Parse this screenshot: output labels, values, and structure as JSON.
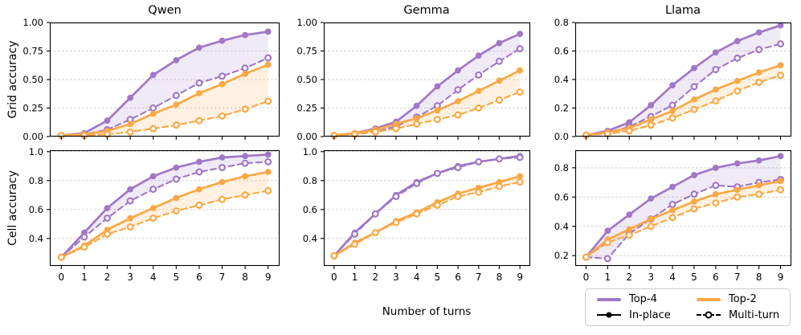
{
  "chart_data": {
    "type": "line",
    "xlabel": "Number of turns",
    "x": [
      0,
      1,
      2,
      3,
      4,
      5,
      6,
      7,
      8,
      9
    ],
    "x_tick_labels": [
      "0",
      "1",
      "2",
      "3",
      "4",
      "5",
      "6",
      "7",
      "8",
      "9"
    ],
    "row_labels": [
      "Grid accuracy",
      "Cell accuracy"
    ],
    "col_titles": [
      "Qwen",
      "Gemma",
      "Llama"
    ],
    "legend": {
      "position": "bottom-right",
      "top4_label": "Top-4",
      "top2_label": "Top-2",
      "inplace_label": "In-place",
      "multiturn_label": "Multi-turn"
    },
    "colors": {
      "top4": "#9f78c6",
      "top2": "#faa845",
      "top4_fill": "rgba(159,120,198,0.16)",
      "top2_fill": "rgba(250,168,69,0.16)",
      "gridline": "#cfcfcf",
      "spine": "#000000"
    },
    "grid": true,
    "subplots": [
      {
        "title": "Qwen",
        "ylabel": "Grid accuracy",
        "ylim": [
          0,
          1.0
        ],
        "yticks": [
          0,
          0.25,
          0.5,
          0.75,
          1.0
        ],
        "ytick_labels": [
          "0.00",
          "0.25",
          "0.50",
          "0.75",
          "1.00"
        ],
        "show_x_tick_labels": false,
        "series": [
          {
            "name": "Top-4 In-place",
            "group": "top4",
            "style": "solid",
            "marker": "filled-circle",
            "values": [
              0.01,
              0.03,
              0.14,
              0.34,
              0.54,
              0.67,
              0.78,
              0.84,
              0.89,
              0.92
            ]
          },
          {
            "name": "Top-4 Multi-turn",
            "group": "top4",
            "style": "dashed",
            "marker": "open-circle",
            "values": [
              0.01,
              0.02,
              0.06,
              0.15,
              0.25,
              0.36,
              0.47,
              0.53,
              0.6,
              0.69
            ]
          },
          {
            "name": "Top-2 In-place",
            "group": "top2",
            "style": "solid",
            "marker": "filled-circle",
            "values": [
              0.01,
              0.02,
              0.05,
              0.11,
              0.2,
              0.28,
              0.38,
              0.46,
              0.55,
              0.63
            ]
          },
          {
            "name": "Top-2 Multi-turn",
            "group": "top2",
            "style": "dashed",
            "marker": "open-circle",
            "values": [
              0.01,
              0.01,
              0.02,
              0.04,
              0.07,
              0.1,
              0.14,
              0.18,
              0.24,
              0.31
            ]
          }
        ]
      },
      {
        "title": "Gemma",
        "ylabel": "Grid accuracy",
        "ylim": [
          0,
          1.0
        ],
        "yticks": [
          0,
          0.25,
          0.5,
          0.75,
          1.0
        ],
        "ytick_labels": [
          "0.00",
          "0.25",
          "0.50",
          "0.75",
          "1.00"
        ],
        "show_x_tick_labels": false,
        "series": [
          {
            "name": "Top-4 In-place",
            "group": "top4",
            "style": "solid",
            "marker": "filled-circle",
            "values": [
              0.01,
              0.03,
              0.07,
              0.13,
              0.27,
              0.44,
              0.58,
              0.71,
              0.82,
              0.9
            ]
          },
          {
            "name": "Top-4 Multi-turn",
            "group": "top4",
            "style": "dashed",
            "marker": "open-circle",
            "values": [
              0.01,
              0.02,
              0.04,
              0.09,
              0.17,
              0.27,
              0.41,
              0.54,
              0.66,
              0.77
            ]
          },
          {
            "name": "Top-2 In-place",
            "group": "top2",
            "style": "solid",
            "marker": "filled-circle",
            "values": [
              0.01,
              0.03,
              0.06,
              0.11,
              0.16,
              0.23,
              0.31,
              0.4,
              0.49,
              0.58
            ]
          },
          {
            "name": "Top-2 Multi-turn",
            "group": "top2",
            "style": "dashed",
            "marker": "open-circle",
            "values": [
              0.01,
              0.02,
              0.04,
              0.07,
              0.11,
              0.15,
              0.19,
              0.25,
              0.32,
              0.39
            ]
          }
        ]
      },
      {
        "title": "Llama",
        "ylabel": "Grid accuracy",
        "ylim": [
          0,
          0.8
        ],
        "yticks": [
          0,
          0.2,
          0.4,
          0.6,
          0.8
        ],
        "ytick_labels": [
          "0.0",
          "0.2",
          "0.4",
          "0.6",
          "0.8"
        ],
        "show_x_tick_labels": false,
        "series": [
          {
            "name": "Top-4 In-place",
            "group": "top4",
            "style": "solid",
            "marker": "filled-circle",
            "values": [
              0.01,
              0.04,
              0.1,
              0.22,
              0.36,
              0.48,
              0.59,
              0.67,
              0.73,
              0.78
            ]
          },
          {
            "name": "Top-4 Multi-turn",
            "group": "top4",
            "style": "dashed",
            "marker": "open-circle",
            "values": [
              0.01,
              0.02,
              0.07,
              0.14,
              0.22,
              0.35,
              0.47,
              0.55,
              0.61,
              0.65
            ]
          },
          {
            "name": "Top-2 In-place",
            "group": "top2",
            "style": "solid",
            "marker": "filled-circle",
            "values": [
              0.01,
              0.03,
              0.06,
              0.12,
              0.18,
              0.26,
              0.33,
              0.39,
              0.45,
              0.5
            ]
          },
          {
            "name": "Top-2 Multi-turn",
            "group": "top2",
            "style": "dashed",
            "marker": "open-circle",
            "values": [
              0.01,
              0.02,
              0.04,
              0.08,
              0.13,
              0.19,
              0.25,
              0.32,
              0.38,
              0.43
            ]
          }
        ]
      },
      {
        "title": "Qwen",
        "ylabel": "Cell accuracy",
        "ylim": [
          0.21,
          1.01
        ],
        "yticks": [
          0.4,
          0.6,
          0.8,
          1.0
        ],
        "ytick_labels": [
          "0.4",
          "0.6",
          "0.8",
          "1.0"
        ],
        "show_x_tick_labels": true,
        "series": [
          {
            "name": "Top-4 In-place",
            "group": "top4",
            "style": "solid",
            "marker": "filled-circle",
            "values": [
              0.27,
              0.44,
              0.61,
              0.74,
              0.83,
              0.89,
              0.93,
              0.96,
              0.97,
              0.98
            ]
          },
          {
            "name": "Top-4 Multi-turn",
            "group": "top4",
            "style": "dashed",
            "marker": "open-circle",
            "values": [
              0.27,
              0.41,
              0.54,
              0.66,
              0.74,
              0.81,
              0.86,
              0.89,
              0.92,
              0.93
            ]
          },
          {
            "name": "Top-2 In-place",
            "group": "top2",
            "style": "solid",
            "marker": "filled-circle",
            "values": [
              0.27,
              0.35,
              0.46,
              0.54,
              0.61,
              0.68,
              0.74,
              0.79,
              0.83,
              0.86
            ]
          },
          {
            "name": "Top-2 Multi-turn",
            "group": "top2",
            "style": "dashed",
            "marker": "open-circle",
            "values": [
              0.27,
              0.34,
              0.43,
              0.48,
              0.54,
              0.59,
              0.63,
              0.67,
              0.7,
              0.73
            ]
          }
        ]
      },
      {
        "title": "Gemma",
        "ylabel": "Cell accuracy",
        "ylim": [
          0.21,
          1.01
        ],
        "yticks": [
          0.4,
          0.6,
          0.8,
          1.0
        ],
        "ytick_labels": [
          "0.4",
          "0.6",
          "0.8",
          "1.0"
        ],
        "show_x_tick_labels": true,
        "series": [
          {
            "name": "Top-4 In-place",
            "group": "top4",
            "style": "solid",
            "marker": "filled-circle",
            "values": [
              0.28,
              0.44,
              0.57,
              0.7,
              0.79,
              0.85,
              0.9,
              0.93,
              0.95,
              0.97
            ]
          },
          {
            "name": "Top-4 Multi-turn",
            "group": "top4",
            "style": "dashed",
            "marker": "open-circle",
            "values": [
              0.28,
              0.43,
              0.57,
              0.69,
              0.78,
              0.85,
              0.89,
              0.93,
              0.95,
              0.96
            ]
          },
          {
            "name": "Top-2 In-place",
            "group": "top2",
            "style": "solid",
            "marker": "filled-circle",
            "values": [
              0.28,
              0.37,
              0.44,
              0.52,
              0.58,
              0.65,
              0.71,
              0.75,
              0.79,
              0.83
            ]
          },
          {
            "name": "Top-2 Multi-turn",
            "group": "top2",
            "style": "dashed",
            "marker": "open-circle",
            "values": [
              0.28,
              0.36,
              0.44,
              0.51,
              0.57,
              0.63,
              0.69,
              0.72,
              0.76,
              0.79
            ]
          }
        ]
      },
      {
        "title": "Llama",
        "ylabel": "Cell accuracy",
        "ylim": [
          0.13,
          0.92
        ],
        "yticks": [
          0.2,
          0.4,
          0.6,
          0.8
        ],
        "ytick_labels": [
          "0.2",
          "0.4",
          "0.6",
          "0.8"
        ],
        "show_x_tick_labels": true,
        "series": [
          {
            "name": "Top-4 In-place",
            "group": "top4",
            "style": "solid",
            "marker": "filled-circle",
            "values": [
              0.19,
              0.37,
              0.48,
              0.59,
              0.67,
              0.75,
              0.8,
              0.83,
              0.85,
              0.88
            ]
          },
          {
            "name": "Top-4 Multi-turn",
            "group": "top4",
            "style": "dashed",
            "marker": "open-circle",
            "values": [
              0.19,
              0.18,
              0.35,
              0.45,
              0.55,
              0.62,
              0.68,
              0.67,
              0.7,
              0.72
            ]
          },
          {
            "name": "Top-2 In-place",
            "group": "top2",
            "style": "solid",
            "marker": "filled-circle",
            "values": [
              0.19,
              0.31,
              0.38,
              0.45,
              0.51,
              0.57,
              0.62,
              0.65,
              0.68,
              0.71
            ]
          },
          {
            "name": "Top-2 Multi-turn",
            "group": "top2",
            "style": "dashed",
            "marker": "open-circle",
            "values": [
              0.19,
              0.29,
              0.34,
              0.4,
              0.46,
              0.52,
              0.56,
              0.6,
              0.62,
              0.65
            ]
          }
        ]
      }
    ]
  }
}
